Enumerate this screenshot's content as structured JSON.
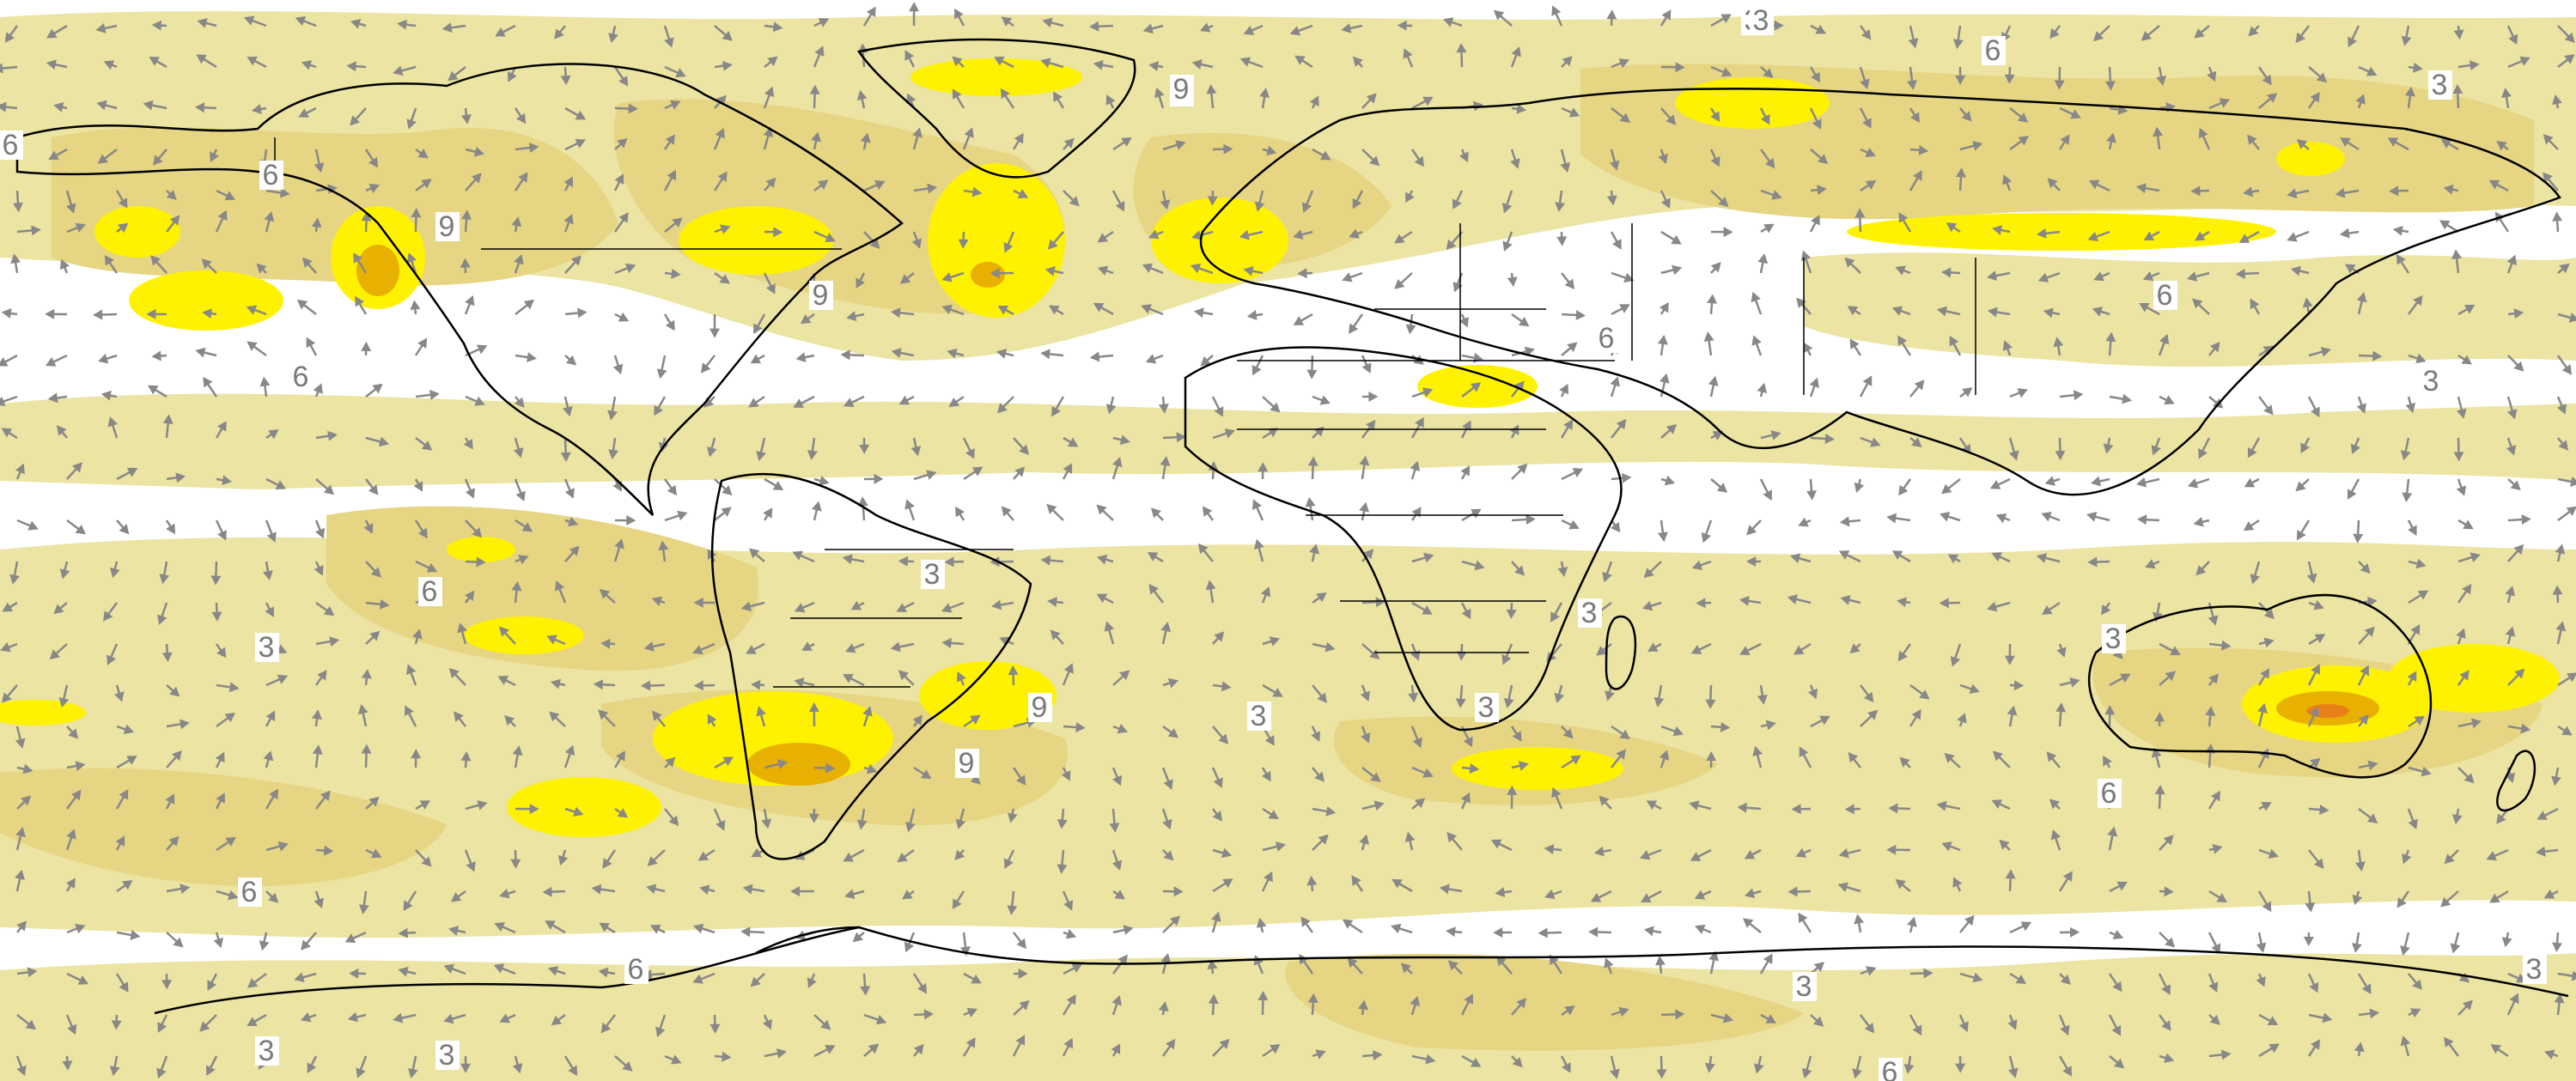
{
  "map": {
    "projection": "equirectangular",
    "colors": {
      "level_1": "#ebe4a2",
      "level_2": "#e6d583",
      "level_3": "#fff200",
      "level_4": "#e8b000",
      "level_5": "#e8801a",
      "arrow": "#888888",
      "coastline": "#000000",
      "background": "#ffffff"
    },
    "contour_labels": [
      "3",
      "6",
      "9",
      "6",
      "9",
      "9",
      "9",
      "6",
      "6",
      "6",
      "6",
      "3",
      "6",
      "3",
      "6",
      "9",
      "9",
      "3",
      "6",
      "3",
      "6",
      "3",
      "3",
      "3",
      "3",
      "3",
      "6",
      "3",
      "3",
      "3",
      "3",
      "6"
    ]
  }
}
